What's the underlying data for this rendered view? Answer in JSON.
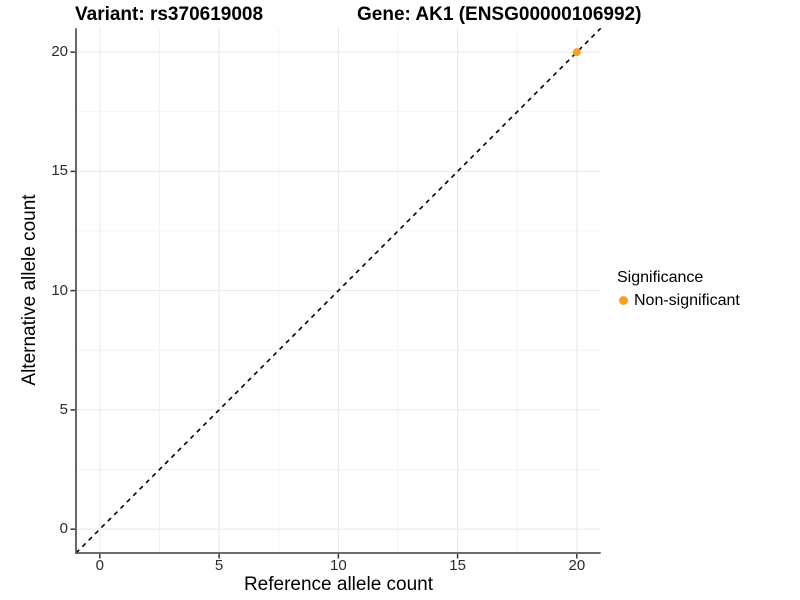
{
  "titles": {
    "variant": "Variant: rs370619008",
    "gene": "Gene: AK1 (ENSG00000106992)"
  },
  "axes": {
    "x_label": "Reference allele count",
    "y_label": "Alternative allele count"
  },
  "legend": {
    "title": "Significance",
    "items": [
      {
        "label": "Non-significant",
        "color": "#F9A023"
      }
    ]
  },
  "chart_data": {
    "type": "scatter",
    "title": "Variant: rs370619008    Gene: AK1 (ENSG00000106992)",
    "xlabel": "Reference allele count",
    "ylabel": "Alternative allele count",
    "xlim": [
      -1,
      21
    ],
    "ylim": [
      -1,
      21
    ],
    "xticks": [
      0,
      5,
      10,
      15,
      20
    ],
    "yticks": [
      0,
      5,
      10,
      15,
      20
    ],
    "x_minor_ticks": [
      2.5,
      7.5,
      12.5,
      17.5
    ],
    "y_minor_ticks": [
      2.5,
      7.5,
      12.5,
      17.5
    ],
    "grid": true,
    "legend_position": "right",
    "series": [
      {
        "name": "Non-significant",
        "color": "#F9A023",
        "points": [
          {
            "x": 20,
            "y": 20
          }
        ]
      }
    ],
    "reference_line": {
      "kind": "identity",
      "slope": 1,
      "intercept": 0,
      "style": "dashed",
      "color": "#000000"
    },
    "colors": {
      "grid_major": "#E7E7E7",
      "grid_minor": "#F3F3F3",
      "axis_line": "#58585A",
      "tick_mark": "#333333",
      "point": "#F9A023"
    }
  }
}
